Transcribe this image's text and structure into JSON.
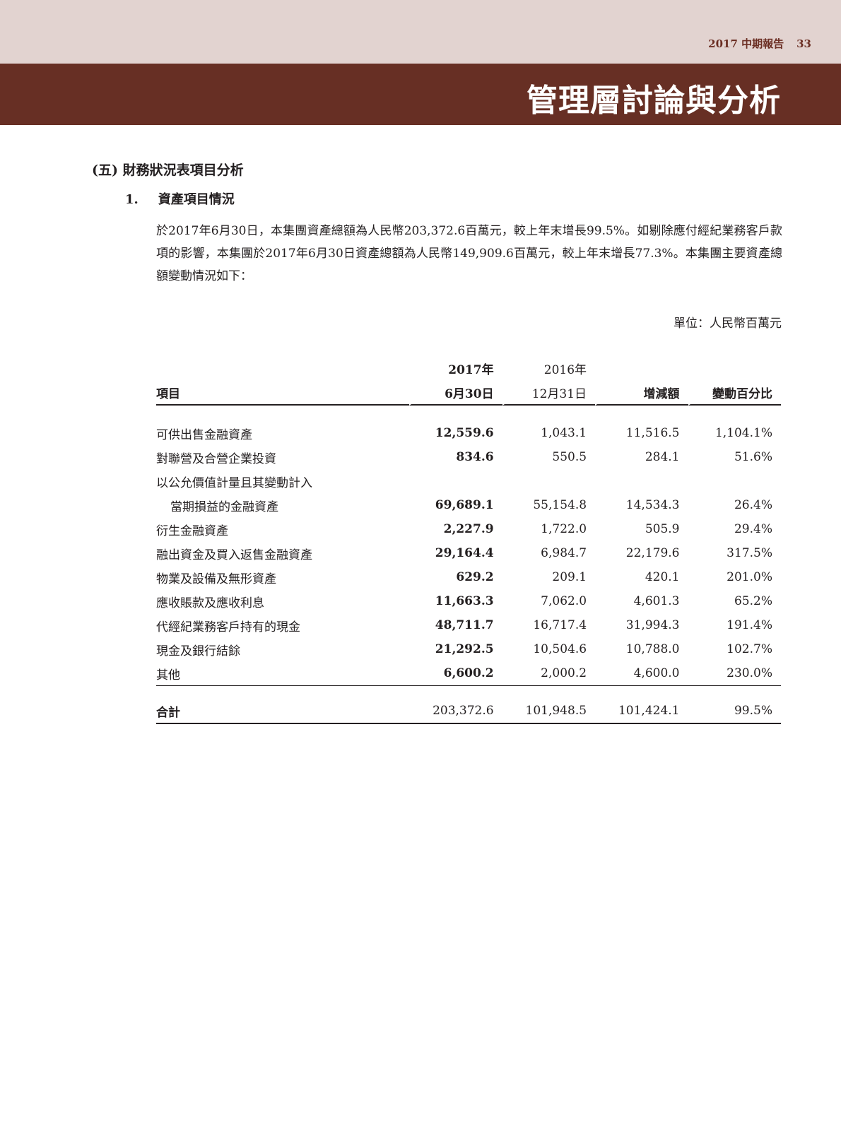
{
  "header": {
    "report": "2017 中期報告",
    "page": "33",
    "title": "管理層討論與分析"
  },
  "section": {
    "heading": "(五) 財務狀況表項目分析",
    "sub_number": "1.",
    "sub_title": "資產項目情況",
    "paragraph": "於2017年6月30日，本集團資產總額為人民幣203,372.6百萬元，較上年末增長99.5%。如剔除應付經紀業務客戶款項的影響，本集團於2017年6月30日資產總額為人民幣149,909.6百萬元，較上年末增長77.3%。本集團主要資產總額變動情況如下：",
    "unit": "單位：人民幣百萬元"
  },
  "table": {
    "headers": {
      "item": "項目",
      "c1_top": "2017年",
      "c1": "6月30日",
      "c2_top": "2016年",
      "c2": "12月31日",
      "c3": "增減額",
      "c4": "變動百分比"
    },
    "rows": [
      {
        "label": "可供出售金融資產",
        "v": [
          "12,559.6",
          "1,043.1",
          "11,516.5",
          "1,104.1%"
        ]
      },
      {
        "label": "對聯營及合營企業投資",
        "v": [
          "834.6",
          "550.5",
          "284.1",
          "51.6%"
        ]
      },
      {
        "label": "以公允價值計量且其變動計入",
        "v": [
          "",
          "",
          "",
          ""
        ]
      },
      {
        "label": "當期損益的金融資產",
        "v": [
          "69,689.1",
          "55,154.8",
          "14,534.3",
          "26.4%"
        ]
      },
      {
        "label": "衍生金融資產",
        "v": [
          "2,227.9",
          "1,722.0",
          "505.9",
          "29.4%"
        ]
      },
      {
        "label": "融出資金及買入返售金融資產",
        "v": [
          "29,164.4",
          "6,984.7",
          "22,179.6",
          "317.5%"
        ]
      },
      {
        "label": "物業及設備及無形資產",
        "v": [
          "629.2",
          "209.1",
          "420.1",
          "201.0%"
        ]
      },
      {
        "label": "應收賬款及應收利息",
        "v": [
          "11,663.3",
          "7,062.0",
          "4,601.3",
          "65.2%"
        ]
      },
      {
        "label": "代經紀業務客戶持有的現金",
        "v": [
          "48,711.7",
          "16,717.4",
          "31,994.3",
          "191.4%"
        ]
      },
      {
        "label": "現金及銀行結餘",
        "v": [
          "21,292.5",
          "10,504.6",
          "10,788.0",
          "102.7%"
        ]
      },
      {
        "label": "其他",
        "v": [
          "6,600.2",
          "2,000.2",
          "4,600.0",
          "230.0%"
        ]
      }
    ],
    "total": {
      "label": "合計",
      "v": [
        "203,372.6",
        "101,948.5",
        "101,424.1",
        "99.5%"
      ]
    }
  }
}
